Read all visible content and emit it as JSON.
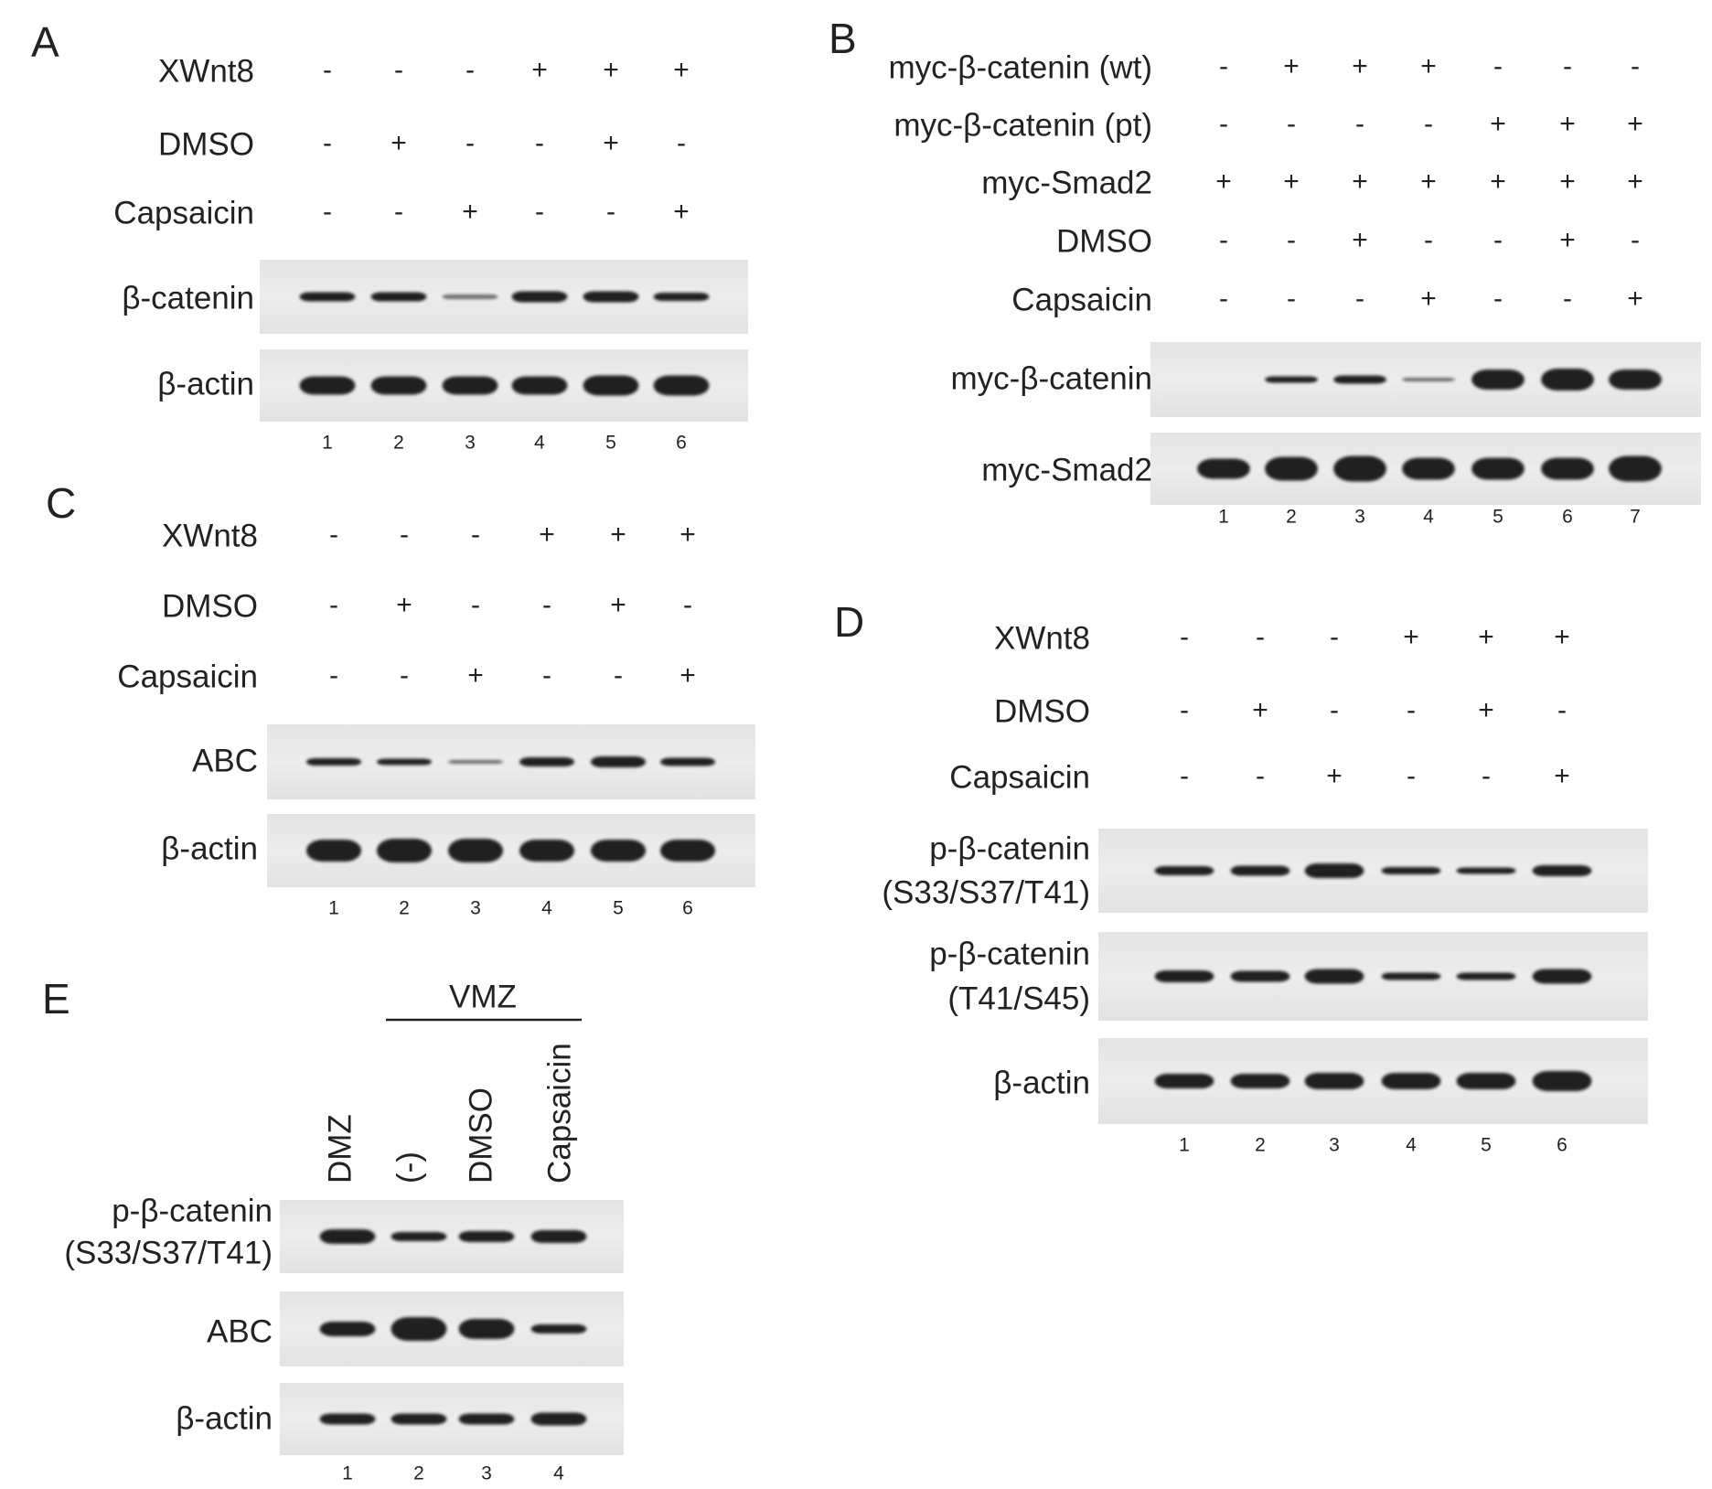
{
  "panels": [
    {
      "letter": "A",
      "conditions": [
        {
          "label": "XWnt8",
          "signs": [
            "-",
            "-",
            "-",
            "+",
            "+",
            "+"
          ]
        },
        {
          "label": "DMSO",
          "signs": [
            "-",
            "+",
            "-",
            "-",
            "+",
            "-"
          ]
        },
        {
          "label": "Capsaicin",
          "signs": [
            "-",
            "-",
            "+",
            "-",
            "-",
            "+"
          ]
        }
      ],
      "blots": [
        {
          "label": [
            "β-catenin"
          ]
        },
        {
          "label": [
            "β-actin"
          ]
        }
      ],
      "lanes": [
        "1",
        "2",
        "3",
        "4",
        "5",
        "6"
      ]
    },
    {
      "letter": "B",
      "conditions": [
        {
          "label": "myc-β-catenin (wt)",
          "signs": [
            "-",
            "+",
            "+",
            "+",
            "-",
            "-",
            "-"
          ]
        },
        {
          "label": "myc-β-catenin (pt)",
          "signs": [
            "-",
            "-",
            "-",
            "-",
            "+",
            "+",
            "+"
          ]
        },
        {
          "label": "myc-Smad2",
          "signs": [
            "+",
            "+",
            "+",
            "+",
            "+",
            "+",
            "+"
          ]
        },
        {
          "label": "DMSO",
          "signs": [
            "-",
            "-",
            "+",
            "-",
            "-",
            "+",
            "-"
          ]
        },
        {
          "label": "Capsaicin",
          "signs": [
            "-",
            "-",
            "-",
            "+",
            "-",
            "-",
            "+"
          ]
        }
      ],
      "blots": [
        {
          "label": [
            "myc-β-catenin"
          ]
        },
        {
          "label": [
            "myc-Smad2"
          ]
        }
      ],
      "lanes": [
        "1",
        "2",
        "3",
        "4",
        "5",
        "6",
        "7"
      ]
    },
    {
      "letter": "C",
      "conditions": [
        {
          "label": "XWnt8",
          "signs": [
            "-",
            "-",
            "-",
            "+",
            "+",
            "+"
          ]
        },
        {
          "label": "DMSO",
          "signs": [
            "-",
            "+",
            "-",
            "-",
            "+",
            "-"
          ]
        },
        {
          "label": "Capsaicin",
          "signs": [
            "-",
            "-",
            "+",
            "-",
            "-",
            "+"
          ]
        }
      ],
      "blots": [
        {
          "label": [
            "ABC"
          ]
        },
        {
          "label": [
            "β-actin"
          ]
        }
      ],
      "lanes": [
        "1",
        "2",
        "3",
        "4",
        "5",
        "6"
      ]
    },
    {
      "letter": "D",
      "conditions": [
        {
          "label": "XWnt8",
          "signs": [
            "-",
            "-",
            "-",
            "+",
            "+",
            "+"
          ]
        },
        {
          "label": "DMSO",
          "signs": [
            "-",
            "+",
            "-",
            "-",
            "+",
            "-"
          ]
        },
        {
          "label": "Capsaicin",
          "signs": [
            "-",
            "-",
            "+",
            "-",
            "-",
            "+"
          ]
        }
      ],
      "blots": [
        {
          "label": [
            "p-β-catenin",
            "(S33/S37/T41)"
          ]
        },
        {
          "label": [
            "p-β-catenin",
            "(T41/S45)"
          ]
        },
        {
          "label": [
            "β-actin"
          ]
        }
      ],
      "lanes": [
        "1",
        "2",
        "3",
        "4",
        "5",
        "6"
      ]
    },
    {
      "letter": "E",
      "group_label": "VMZ",
      "lane_labels": [
        "DMZ",
        "(-)",
        "DMSO",
        "Capsaicin"
      ],
      "conditions": [],
      "blots": [
        {
          "label": [
            "p-β-catenin",
            "(S33/S37/T41)"
          ]
        },
        {
          "label": [
            "ABC"
          ]
        },
        {
          "label": [
            "β-actin"
          ]
        }
      ],
      "lanes": [
        "1",
        "2",
        "3",
        "4"
      ]
    }
  ]
}
